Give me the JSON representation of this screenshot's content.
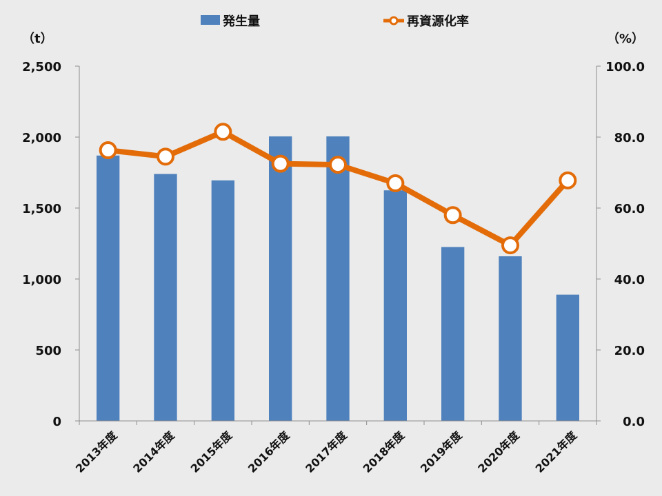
{
  "chart_data": {
    "type": "bar",
    "categories": [
      "2013年度",
      "2014年度",
      "2015年度",
      "2016年度",
      "2017年度",
      "2018年度",
      "2019年度",
      "2020年度",
      "2021年度"
    ],
    "series": [
      {
        "name": "発生量",
        "type": "bar",
        "axis": "left",
        "color": "#4f81bd",
        "values": [
          1870,
          1740,
          1695,
          2005,
          2005,
          1625,
          1225,
          1160,
          890
        ]
      },
      {
        "name": "再資源化率",
        "type": "line",
        "axis": "right",
        "color": "#e36c09",
        "values": [
          76.3,
          74.5,
          81.5,
          72.5,
          72.2,
          67.0,
          58.0,
          49.5,
          67.8
        ]
      }
    ],
    "y_left": {
      "unit": "（t）",
      "min": 0,
      "max": 2500,
      "ticks": [
        0,
        500,
        1000,
        1500,
        2000,
        2500
      ],
      "tick_labels": [
        "0",
        "500",
        "1,000",
        "1,500",
        "2,000",
        "2,500"
      ]
    },
    "y_right": {
      "unit": "（%）",
      "min": 0,
      "max": 100,
      "ticks": [
        0,
        20,
        40,
        60,
        80,
        100
      ],
      "tick_labels": [
        "0.0",
        "20.0",
        "40.0",
        "60.0",
        "80.0",
        "100.0"
      ]
    },
    "legend_position": "top-center",
    "grid": false
  }
}
